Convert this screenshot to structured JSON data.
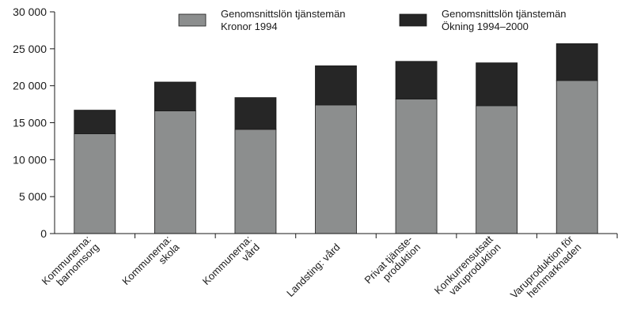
{
  "chart_data": {
    "type": "bar",
    "stacked": true,
    "categories": [
      [
        "Kommunerna:",
        "barnomsorg"
      ],
      [
        "Kommunerna:",
        "skola"
      ],
      [
        "Kommunerna:",
        "vård"
      ],
      [
        "Landsting: vård"
      ],
      [
        "Privat tjänste-",
        "produktion"
      ],
      [
        "Konkurrensutsatt",
        "varuproduktion"
      ],
      [
        "Varuproduktion för",
        "hemmarknaden"
      ]
    ],
    "series": [
      {
        "name": [
          "Genomsnittslön tjänstemän",
          "Kronor 1994"
        ],
        "color": "#8c8e8e",
        "values": [
          13500,
          16600,
          14100,
          17400,
          18200,
          17300,
          20700
        ]
      },
      {
        "name": [
          "Genomsnittslön tjänstemän",
          "Ökning 1994–2000"
        ],
        "color": "#262626",
        "values": [
          3200,
          3900,
          4300,
          5300,
          5100,
          5800,
          5000
        ]
      }
    ],
    "yticks": [
      {
        "value": 0,
        "label": "0"
      },
      {
        "value": 5000,
        "label": "5 000"
      },
      {
        "value": 10000,
        "label": "10 000"
      },
      {
        "value": 15000,
        "label": "15 000"
      },
      {
        "value": 20000,
        "label": "20 000"
      },
      {
        "value": 25000,
        "label": "25 000"
      },
      {
        "value": 30000,
        "label": "30 000"
      }
    ],
    "ylim": [
      0,
      30000
    ],
    "grid": false,
    "legend_position": "top-right"
  }
}
